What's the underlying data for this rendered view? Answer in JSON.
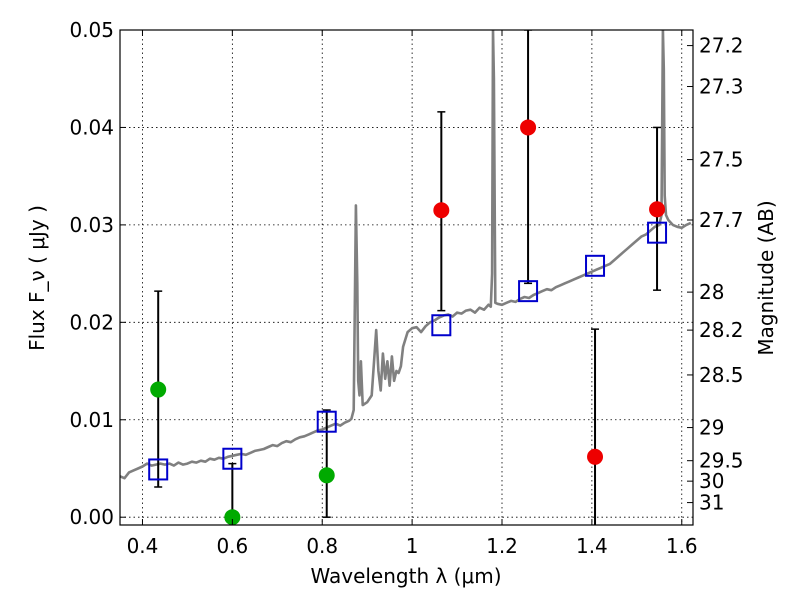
{
  "chart_data": {
    "type": "scatter",
    "xlabel": "Wavelength  λ (μm)",
    "ylabel": "Flux  F_ν  ( μJy )",
    "ylabel_right": "Magnitude (AB)",
    "xlim": [
      0.35,
      1.625
    ],
    "ylim": [
      -0.0008,
      0.05
    ],
    "grid": true,
    "x_ticks": [
      0.4,
      0.6,
      0.8,
      1.0,
      1.2,
      1.4,
      1.6
    ],
    "x_tick_labels": [
      "0.4",
      "0.6",
      "0.8",
      "1",
      "1.2",
      "1.4",
      "1.6"
    ],
    "y_ticks": [
      0.0,
      0.01,
      0.02,
      0.03,
      0.04,
      0.05
    ],
    "y_tick_labels": [
      "0.00",
      "0.01",
      "0.02",
      "0.03",
      "0.04",
      "0.05"
    ],
    "right_ticks": [
      {
        "label": "27.2",
        "flux": 0.0484
      },
      {
        "label": "27.3",
        "flux": 0.0442
      },
      {
        "label": "27.5",
        "flux": 0.0367
      },
      {
        "label": "27.7",
        "flux": 0.0305
      },
      {
        "label": "28",
        "flux": 0.0231
      },
      {
        "label": "28.2",
        "flux": 0.0192
      },
      {
        "label": "28.5",
        "flux": 0.0146
      },
      {
        "label": "29",
        "flux": 0.0092
      },
      {
        "label": "29.5",
        "flux": 0.0058
      },
      {
        "label": "30",
        "flux": 0.0037
      },
      {
        "label": "31",
        "flux": 0.0015
      }
    ],
    "series": [
      {
        "color": "#808080",
        "x": [
          0.35,
          0.36,
          0.37,
          0.38,
          0.39,
          0.4,
          0.41,
          0.42,
          0.43,
          0.44,
          0.45,
          0.46,
          0.47,
          0.48,
          0.49,
          0.5,
          0.51,
          0.52,
          0.53,
          0.54,
          0.55,
          0.56,
          0.57,
          0.58,
          0.59,
          0.6,
          0.61,
          0.62,
          0.63,
          0.64,
          0.65,
          0.66,
          0.67,
          0.68,
          0.69,
          0.7,
          0.71,
          0.72,
          0.73,
          0.74,
          0.75,
          0.76,
          0.77,
          0.78,
          0.79,
          0.8,
          0.81,
          0.82,
          0.83,
          0.84,
          0.85,
          0.86,
          0.865,
          0.87,
          0.875,
          0.878,
          0.88,
          0.883,
          0.886,
          0.89,
          0.9,
          0.91,
          0.92,
          0.925,
          0.93,
          0.935,
          0.94,
          0.945,
          0.95,
          0.955,
          0.96,
          0.965,
          0.97,
          0.975,
          0.98,
          0.99,
          1.0,
          1.01,
          1.02,
          1.03,
          1.04,
          1.05,
          1.06,
          1.07,
          1.08,
          1.09,
          1.1,
          1.11,
          1.12,
          1.13,
          1.14,
          1.15,
          1.16,
          1.17,
          1.175,
          1.178,
          1.18,
          1.182,
          1.185,
          1.19,
          1.2,
          1.21,
          1.22,
          1.23,
          1.24,
          1.25,
          1.26,
          1.27,
          1.28,
          1.29,
          1.3,
          1.31,
          1.32,
          1.33,
          1.34,
          1.35,
          1.36,
          1.37,
          1.38,
          1.39,
          1.4,
          1.41,
          1.42,
          1.43,
          1.44,
          1.45,
          1.46,
          1.47,
          1.48,
          1.49,
          1.5,
          1.51,
          1.52,
          1.53,
          1.54,
          1.55,
          1.555,
          1.558,
          1.56,
          1.562,
          1.565,
          1.57,
          1.58,
          1.59,
          1.6,
          1.61,
          1.62
        ],
        "y": [
          0.0042,
          0.004,
          0.0046,
          0.0048,
          0.005,
          0.0052,
          0.0055,
          0.0053,
          0.0054,
          0.0055,
          0.0054,
          0.0055,
          0.0053,
          0.0056,
          0.0054,
          0.0055,
          0.0057,
          0.0056,
          0.0058,
          0.0057,
          0.006,
          0.0059,
          0.0061,
          0.006,
          0.0062,
          0.0063,
          0.0064,
          0.0065,
          0.0064,
          0.0066,
          0.0068,
          0.0069,
          0.007,
          0.0072,
          0.0074,
          0.0073,
          0.0076,
          0.0078,
          0.0077,
          0.008,
          0.0082,
          0.0083,
          0.0085,
          0.0087,
          0.0089,
          0.009,
          0.0092,
          0.0094,
          0.0096,
          0.0094,
          0.0097,
          0.0099,
          0.0101,
          0.011,
          0.032,
          0.024,
          0.014,
          0.0125,
          0.016,
          0.0115,
          0.0118,
          0.0125,
          0.0192,
          0.015,
          0.013,
          0.0168,
          0.0142,
          0.016,
          0.0135,
          0.0165,
          0.014,
          0.015,
          0.0148,
          0.0155,
          0.0175,
          0.019,
          0.0194,
          0.0195,
          0.019,
          0.0196,
          0.02,
          0.0202,
          0.0205,
          0.0207,
          0.0208,
          0.0206,
          0.021,
          0.0209,
          0.0212,
          0.0213,
          0.021,
          0.0215,
          0.0213,
          0.0218,
          0.0216,
          0.025,
          0.05,
          0.045,
          0.022,
          0.0219,
          0.0218,
          0.022,
          0.0222,
          0.0221,
          0.0224,
          0.0226,
          0.0225,
          0.0228,
          0.023,
          0.0232,
          0.0234,
          0.0233,
          0.0236,
          0.0238,
          0.024,
          0.0242,
          0.0244,
          0.0246,
          0.0248,
          0.025,
          0.0252,
          0.0254,
          0.0256,
          0.0258,
          0.026,
          0.0264,
          0.0268,
          0.0272,
          0.0276,
          0.028,
          0.0284,
          0.0288,
          0.029,
          0.0294,
          0.0298,
          0.03,
          0.031,
          0.05,
          0.046,
          0.033,
          0.031,
          0.0305,
          0.03,
          0.0298,
          0.0297,
          0.03,
          0.0302
        ]
      },
      {
        "color": "#0000cc",
        "marker": "open-square",
        "x": [
          0.435,
          0.6,
          0.81,
          1.065,
          1.258,
          1.407,
          1.545
        ],
        "y": [
          0.0049,
          0.006,
          0.0098,
          0.0197,
          0.0232,
          0.0258,
          0.0292
        ]
      },
      {
        "color": "#00aa00",
        "marker": "circle",
        "x": [
          0.435,
          0.6,
          0.81
        ],
        "y": [
          0.0131,
          0.0,
          0.0043
        ],
        "err_low": [
          0.0031,
          0.0,
          0.0
        ],
        "err_high": [
          0.0232,
          0.0055,
          0.011
        ]
      },
      {
        "color": "#ee0000",
        "marker": "circle",
        "x": [
          1.065,
          1.258,
          1.407,
          1.545
        ],
        "y": [
          0.0315,
          0.04,
          0.0062,
          0.0316
        ],
        "err_low": [
          0.0212,
          0.024,
          -0.001,
          0.0233
        ],
        "err_high": [
          0.0416,
          0.05,
          0.0193,
          0.04
        ]
      }
    ]
  }
}
